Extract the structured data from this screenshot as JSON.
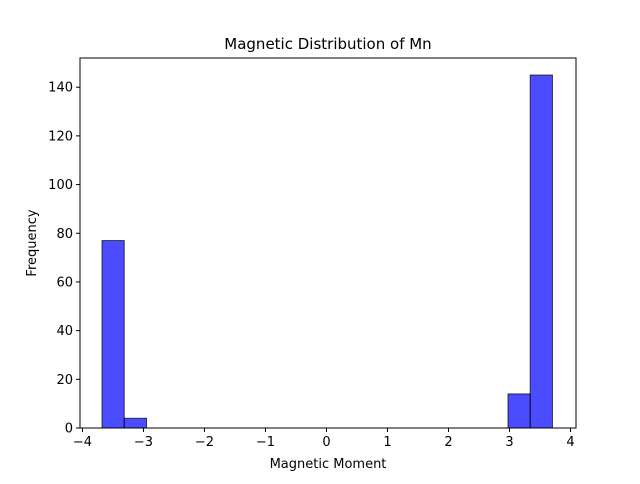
{
  "chart_data": {
    "type": "bar",
    "title": "Magnetic Distribution of Mn",
    "xlabel": "Magnetic Moment",
    "ylabel": "Frequency",
    "xlim": [
      -4.04,
      4.09
    ],
    "ylim": [
      0,
      152
    ],
    "xticks": [
      -4,
      -3,
      -2,
      -1,
      0,
      1,
      2,
      3,
      4
    ],
    "xtick_labels": [
      "−4",
      "−3",
      "−2",
      "−1",
      "0",
      "1",
      "2",
      "3",
      "4"
    ],
    "yticks": [
      0,
      20,
      40,
      60,
      80,
      100,
      120,
      140
    ],
    "ytick_labels": [
      "0",
      "20",
      "40",
      "60",
      "80",
      "100",
      "120",
      "140"
    ],
    "bin_width": 0.3645,
    "bins": [
      {
        "x0": -3.679,
        "x1": -3.315,
        "count": 77
      },
      {
        "x0": -3.315,
        "x1": -2.95,
        "count": 4
      },
      {
        "x0": 2.975,
        "x1": 3.339,
        "count": 14
      },
      {
        "x0": 3.339,
        "x1": 3.704,
        "count": 145
      }
    ],
    "bar_color": "#0000ff",
    "bar_alpha": 0.7,
    "edge_color": "#000000",
    "grid": false,
    "legend": false
  }
}
